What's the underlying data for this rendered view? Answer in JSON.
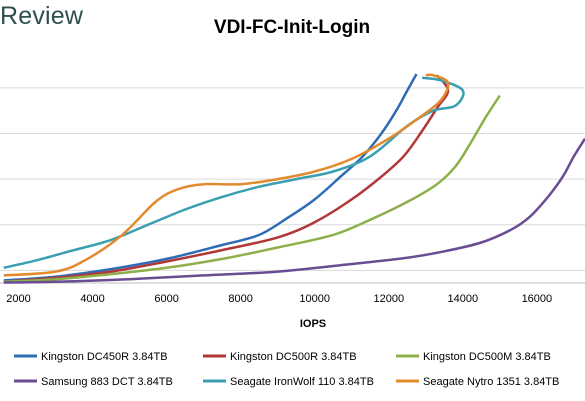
{
  "brand": "Review",
  "chart_data": {
    "type": "line",
    "title": "VDI-FC-Init-Login",
    "xlabel": "IOPS",
    "ylabel": "",
    "xlim": [
      1500,
      17300
    ],
    "ylim": [
      0,
      9
    ],
    "x_ticks": [
      2000,
      4000,
      6000,
      8000,
      10000,
      12000,
      14000,
      16000
    ],
    "grid": true,
    "legend_position": "bottom",
    "series": [
      {
        "name": "Kingston DC450R 3.84TB",
        "color": "#2e6cb5",
        "points": [
          [
            1600,
            0.1
          ],
          [
            3000,
            0.25
          ],
          [
            4500,
            0.55
          ],
          [
            6000,
            0.95
          ],
          [
            7500,
            1.5
          ],
          [
            8500,
            1.9
          ],
          [
            9300,
            2.6
          ],
          [
            10000,
            3.3
          ],
          [
            10700,
            4.2
          ],
          [
            11300,
            5.0
          ],
          [
            11800,
            5.9
          ],
          [
            12200,
            6.8
          ],
          [
            12500,
            7.6
          ],
          [
            12750,
            8.25
          ]
        ]
      },
      {
        "name": "Kingston DC500R 3.84TB",
        "color": "#b23838",
        "points": [
          [
            1600,
            0.05
          ],
          [
            3000,
            0.2
          ],
          [
            4500,
            0.45
          ],
          [
            6000,
            0.85
          ],
          [
            7500,
            1.3
          ],
          [
            9000,
            1.8
          ],
          [
            10000,
            2.4
          ],
          [
            11000,
            3.3
          ],
          [
            11800,
            4.2
          ],
          [
            12400,
            5.0
          ],
          [
            12900,
            6.0
          ],
          [
            13300,
            6.9
          ],
          [
            13600,
            7.6
          ],
          [
            13300,
            8.2
          ]
        ]
      },
      {
        "name": "Kingston DC500M 3.84TB",
        "color": "#8db04a",
        "points": [
          [
            1600,
            0.05
          ],
          [
            3000,
            0.15
          ],
          [
            4500,
            0.35
          ],
          [
            6000,
            0.6
          ],
          [
            7500,
            0.95
          ],
          [
            9000,
            1.4
          ],
          [
            10500,
            1.9
          ],
          [
            11500,
            2.5
          ],
          [
            12500,
            3.2
          ],
          [
            13300,
            3.9
          ],
          [
            13800,
            4.6
          ],
          [
            14200,
            5.5
          ],
          [
            14600,
            6.5
          ],
          [
            15000,
            7.4
          ]
        ]
      },
      {
        "name": "Samsung 883 DCT 3.84TB",
        "color": "#6a4c93",
        "points": [
          [
            1600,
            0.02
          ],
          [
            3000,
            0.05
          ],
          [
            5000,
            0.15
          ],
          [
            7000,
            0.3
          ],
          [
            9000,
            0.45
          ],
          [
            11000,
            0.75
          ],
          [
            12500,
            1.0
          ],
          [
            13500,
            1.25
          ],
          [
            14500,
            1.6
          ],
          [
            15300,
            2.1
          ],
          [
            15800,
            2.6
          ],
          [
            16300,
            3.4
          ],
          [
            16700,
            4.2
          ],
          [
            17000,
            5.0
          ],
          [
            17300,
            5.7
          ]
        ]
      },
      {
        "name": "Seagate IronWolf 110 3.84TB",
        "color": "#3a9fb0",
        "points": [
          [
            1600,
            0.6
          ],
          [
            2500,
            0.9
          ],
          [
            3500,
            1.3
          ],
          [
            4500,
            1.7
          ],
          [
            5500,
            2.3
          ],
          [
            6500,
            2.9
          ],
          [
            7500,
            3.4
          ],
          [
            8500,
            3.8
          ],
          [
            9500,
            4.1
          ],
          [
            10500,
            4.4
          ],
          [
            11500,
            5.0
          ],
          [
            12500,
            6.2
          ],
          [
            13200,
            6.8
          ],
          [
            13800,
            7.0
          ],
          [
            14000,
            7.6
          ],
          [
            13400,
            8.0
          ],
          [
            12900,
            8.1
          ]
        ]
      },
      {
        "name": "Seagate Nytro 1351 3.84TB",
        "color": "#e38a2e",
        "points": [
          [
            1600,
            0.3
          ],
          [
            3000,
            0.45
          ],
          [
            3800,
            0.9
          ],
          [
            4800,
            1.9
          ],
          [
            5700,
            3.2
          ],
          [
            6300,
            3.7
          ],
          [
            7000,
            3.9
          ],
          [
            8000,
            3.9
          ],
          [
            9000,
            4.1
          ],
          [
            10000,
            4.4
          ],
          [
            11000,
            4.9
          ],
          [
            12000,
            5.7
          ],
          [
            12800,
            6.5
          ],
          [
            13400,
            7.2
          ],
          [
            13600,
            7.9
          ],
          [
            13200,
            8.2
          ],
          [
            13000,
            8.2
          ]
        ]
      }
    ]
  }
}
